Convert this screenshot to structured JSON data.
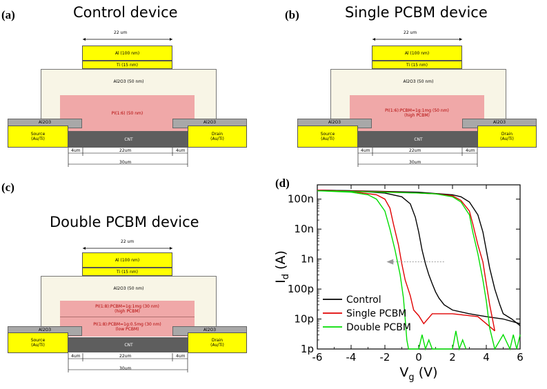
{
  "panels": {
    "a": {
      "letter": "(a)",
      "title": "Control device",
      "width_label": "22 um",
      "al": "Al (100 nm)",
      "ti": "Ti (15 nm)",
      "oxide": "Al2O3 (50 nm)",
      "pi_line1": "PI(1:6) (50 nm)",
      "pi_line2": "",
      "al2o3_left": "Al2O3",
      "al2o3_right": "Al2O3",
      "source1": "Source",
      "source2": "(Au/Ti)",
      "drain1": "Drain",
      "drain2": "(Au/Ti)",
      "cnt": "CNT",
      "dim_left": "4um",
      "dim_mid": "22um",
      "dim_right": "4um",
      "dim_total": "30um"
    },
    "b": {
      "letter": "(b)",
      "title": "Single PCBM device",
      "width_label": "22 um",
      "al": "Al (100 nm)",
      "ti": "Ti (15 nm)",
      "oxide": "Al2O3 (50 nm)",
      "pi_line1": "PI(1:6):PCBM=1g:1mg (50 nm)",
      "pi_line2": "(high PCBM)",
      "al2o3_left": "Al2O3",
      "al2o3_right": "Al2O3",
      "source1": "Source",
      "source2": "(Au/Ti)",
      "drain1": "Drain",
      "drain2": "(Au/Ti)",
      "cnt": "CNT",
      "dim_left": "4um",
      "dim_mid": "22um",
      "dim_right": "4um",
      "dim_total": "30um"
    },
    "c": {
      "letter": "(c)",
      "title": "Double PCBM device",
      "width_label": "22 um",
      "al": "Al (100 nm)",
      "ti": "Ti (15 nm)",
      "oxide": "Al2O3 (50 nm)",
      "pi_top1": "PI(1:8):PCBM=1g:1mg (30 nm)",
      "pi_top2": "(high PCBM)",
      "pi_bot1": "PI(1:8):PCBM=1g:0.5mg (30 nm)",
      "pi_bot2": "(low PCBM)",
      "al2o3_left": "Al2O3",
      "al2o3_right": "Al2O3",
      "source1": "Source",
      "source2": "(Au/Ti)",
      "drain1": "Drain",
      "drain2": "(Au/Ti)",
      "cnt": "CNT",
      "dim_left": "4um",
      "dim_mid": "22um",
      "dim_right": "4um",
      "dim_total": "30um"
    },
    "d": {
      "letter": "(d)"
    }
  },
  "colors": {
    "control": "#000000",
    "single": "#e00000",
    "double": "#00dd00",
    "arrow": "#999999"
  },
  "chart_data": {
    "type": "line",
    "title": "",
    "xlabel": "V",
    "xlabel_sub": "g",
    "xlabel_unit": " (V)",
    "ylabel": "I",
    "ylabel_sub": "d",
    "ylabel_unit": " (A)",
    "xlim": [
      -6,
      6
    ],
    "ylim": [
      1e-12,
      3e-07
    ],
    "yscale": "log",
    "x_ticks": [
      -6,
      -4,
      -2,
      0,
      2,
      4,
      6
    ],
    "x_tick_labels": [
      "-6",
      "-4",
      "-2",
      "0",
      "2",
      "4",
      "6"
    ],
    "y_ticks": [
      1e-12,
      1e-11,
      1e-10,
      1e-09,
      1e-08,
      1e-07
    ],
    "y_tick_labels": [
      "1p",
      "10p",
      "100p",
      "1n",
      "10n",
      "100n"
    ],
    "legend_position": "lower-left",
    "series": [
      {
        "name": "Control",
        "forward": [
          [
            -6,
            2e-07
          ],
          [
            -4,
            1.9e-07
          ],
          [
            -2,
            1.6e-07
          ],
          [
            -1,
            1.2e-07
          ],
          [
            -0.5,
            7e-08
          ],
          [
            -0.2,
            2.5e-08
          ],
          [
            0,
            8e-09
          ],
          [
            0.2,
            2e-09
          ],
          [
            0.4,
            7e-10
          ],
          [
            0.6,
            3e-10
          ],
          [
            0.8,
            1.5e-10
          ],
          [
            1,
            8e-11
          ],
          [
            1.2,
            5e-11
          ],
          [
            1.5,
            3e-11
          ],
          [
            2,
            2e-11
          ],
          [
            3,
            1.5e-11
          ],
          [
            4,
            1.2e-11
          ],
          [
            5,
            1e-11
          ],
          [
            6,
            7e-12
          ]
        ],
        "reverse": [
          [
            6,
            6e-12
          ],
          [
            5.5,
            1e-11
          ],
          [
            5,
            1.5e-11
          ],
          [
            4.8,
            3e-11
          ],
          [
            4.5,
            1e-10
          ],
          [
            4.2,
            5e-10
          ],
          [
            4,
            2e-09
          ],
          [
            3.8,
            8e-09
          ],
          [
            3.5,
            3e-08
          ],
          [
            3,
            8e-08
          ],
          [
            2.5,
            1.2e-07
          ],
          [
            2,
            1.4e-07
          ],
          [
            0,
            1.7e-07
          ],
          [
            -2,
            1.8e-07
          ],
          [
            -4,
            1.9e-07
          ],
          [
            -6,
            2e-07
          ]
        ]
      },
      {
        "name": "Single PCBM",
        "forward": [
          [
            -6,
            2e-07
          ],
          [
            -4,
            1.8e-07
          ],
          [
            -2.5,
            1.4e-07
          ],
          [
            -2,
            1e-07
          ],
          [
            -1.7,
            5e-08
          ],
          [
            -1.5,
            1.5e-08
          ],
          [
            -1.2,
            3e-09
          ],
          [
            -1,
            7e-10
          ],
          [
            -0.8,
            2e-10
          ],
          [
            -0.5,
            6e-11
          ],
          [
            -0.3,
            2e-11
          ],
          [
            0,
            1.3e-11
          ],
          [
            0.3,
            7e-12
          ],
          [
            0.8,
            1.5e-11
          ],
          [
            2,
            1.5e-11
          ],
          [
            3.5,
            1.2e-11
          ],
          [
            4,
            7e-12
          ],
          [
            4.5,
            4e-12
          ]
        ],
        "reverse": [
          [
            4.5,
            4e-12
          ],
          [
            4.4,
            8e-12
          ],
          [
            4.2,
            3e-11
          ],
          [
            4,
            1.5e-10
          ],
          [
            3.8,
            8e-10
          ],
          [
            3.5,
            3e-09
          ],
          [
            3.2,
            1.5e-08
          ],
          [
            3,
            4e-08
          ],
          [
            2.5,
            9e-08
          ],
          [
            2,
            1.3e-07
          ],
          [
            1,
            1.5e-07
          ],
          [
            0,
            1.6e-07
          ],
          [
            -2,
            1.75e-07
          ],
          [
            -4,
            1.85e-07
          ],
          [
            -6,
            1.9e-07
          ]
        ]
      },
      {
        "name": "Double PCBM",
        "forward": [
          [
            -6,
            1.9e-07
          ],
          [
            -4,
            1.7e-07
          ],
          [
            -3,
            1.4e-07
          ],
          [
            -2.5,
            1e-07
          ],
          [
            -2,
            4e-08
          ],
          [
            -1.7,
            1e-08
          ],
          [
            -1.4,
            2e-09
          ],
          [
            -1.1,
            3e-10
          ],
          [
            -0.9,
            5e-11
          ],
          [
            -0.8,
            1e-11
          ],
          [
            -0.7,
            2e-12
          ],
          [
            -0.6,
            1e-12
          ],
          [
            0,
            1e-12
          ],
          [
            0.2,
            3e-12
          ],
          [
            0.4,
            1e-12
          ],
          [
            0.6,
            2e-12
          ],
          [
            0.8,
            1e-12
          ],
          [
            2,
            1e-12
          ],
          [
            2.2,
            4e-12
          ],
          [
            2.4,
            1e-12
          ],
          [
            2.6,
            2e-12
          ],
          [
            2.8,
            1e-12
          ]
        ],
        "reverse": [
          [
            6,
            3e-12
          ],
          [
            5.8,
            1e-12
          ],
          [
            5.6,
            3e-12
          ],
          [
            5.4,
            1e-12
          ],
          [
            5,
            3e-12
          ],
          [
            4.5,
            1e-12
          ],
          [
            4.2,
            5e-12
          ],
          [
            4,
            4e-11
          ],
          [
            3.8,
            2e-10
          ],
          [
            3.5,
            1.5e-09
          ],
          [
            3.2,
            8e-09
          ],
          [
            3,
            3e-08
          ],
          [
            2.5,
            8e-08
          ],
          [
            2,
            1.2e-07
          ],
          [
            1,
            1.5e-07
          ],
          [
            0,
            1.6e-07
          ],
          [
            -2,
            1.7e-07
          ],
          [
            -4,
            1.8e-07
          ],
          [
            -6,
            1.9e-07
          ]
        ]
      }
    ]
  }
}
